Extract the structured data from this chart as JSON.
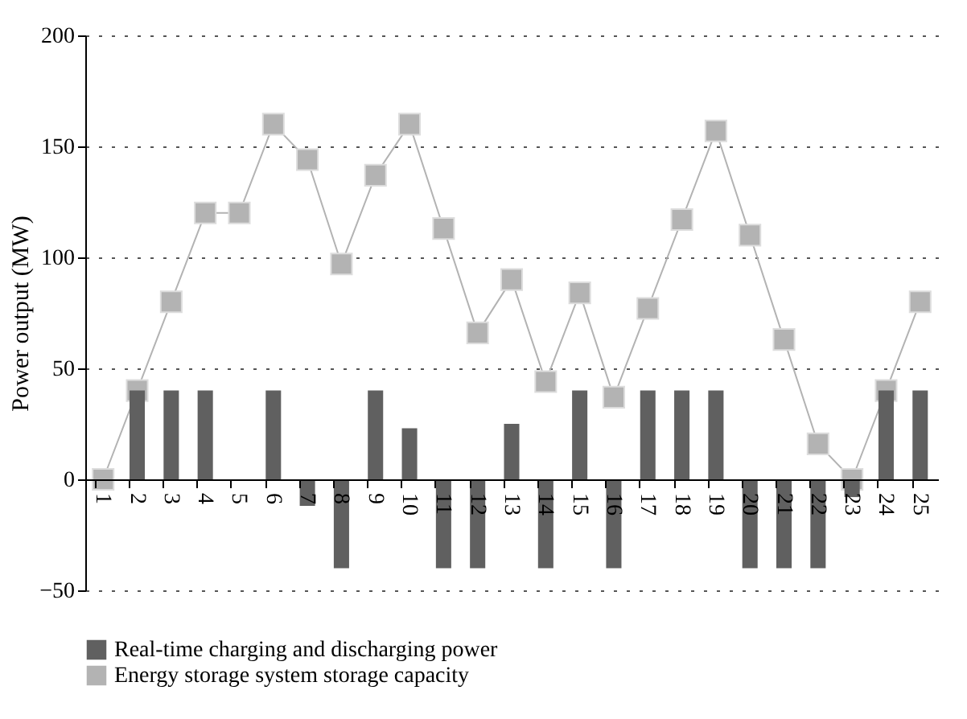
{
  "chart_data": {
    "type": "bar",
    "ylabel": "Power output (MW)",
    "categories": [
      "1",
      "2",
      "3",
      "4",
      "5",
      "6",
      "7",
      "8",
      "9",
      "10",
      "11",
      "12",
      "13",
      "14",
      "15",
      "16",
      "17",
      "18",
      "19",
      "20",
      "21",
      "22",
      "23",
      "24",
      "25"
    ],
    "series": [
      {
        "name": "Real-time charging and discharging power",
        "color": "#606060",
        "values": [
          0,
          40,
          40,
          40,
          0,
          40,
          -12,
          -40,
          40,
          23,
          -40,
          -40,
          25,
          -40,
          40,
          -40,
          40,
          40,
          40,
          -40,
          -40,
          -40,
          -8,
          40,
          40
        ]
      },
      {
        "name": "Energy storage system storage capacity",
        "type": "line",
        "color": "#b3b3b3",
        "marker": "square",
        "values": [
          0,
          40,
          80,
          120,
          120,
          160,
          144,
          97,
          137,
          160,
          113,
          66,
          90,
          44,
          84,
          37,
          77,
          117,
          157,
          110,
          63,
          16,
          0,
          40,
          80
        ]
      }
    ],
    "ylim": [
      -50,
      200
    ],
    "yticks": [
      -50,
      0,
      50,
      100,
      150,
      200
    ],
    "grid": "y",
    "legend": "bottom"
  }
}
